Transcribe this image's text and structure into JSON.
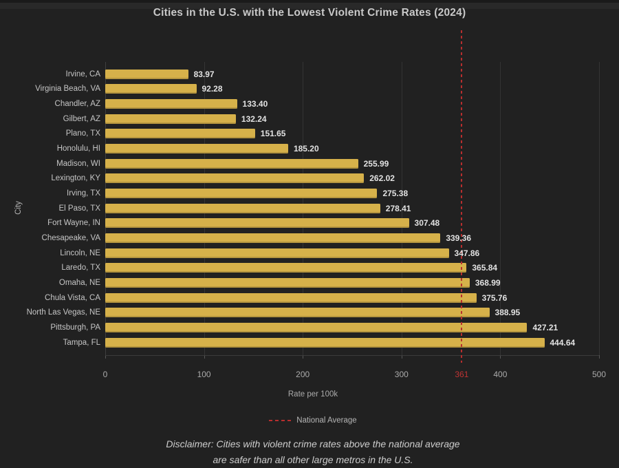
{
  "chart_data": {
    "type": "bar",
    "orientation": "horizontal",
    "title": "Cities in the U.S. with the Lowest Violent Crime Rates (2024)",
    "xlabel": "Rate per 100k",
    "ylabel": "City",
    "xlim": [
      0,
      500
    ],
    "xticks": [
      0,
      100,
      200,
      300,
      400,
      500
    ],
    "categories": [
      "Irvine, CA",
      "Virginia Beach, VA",
      "Chandler, AZ",
      "Gilbert, AZ",
      "Plano, TX",
      "Honolulu, HI",
      "Madison, WI",
      "Lexington, KY",
      "Irving, TX",
      "El Paso, TX",
      "Fort Wayne, IN",
      "Chesapeake, VA",
      "Lincoln, NE",
      "Laredo, TX",
      "Omaha, NE",
      "Chula Vista, CA",
      "North Las Vegas, NE",
      "Pittsburgh, PA",
      "Tampa, FL"
    ],
    "values": [
      83.97,
      92.28,
      133.4,
      132.24,
      151.65,
      185.2,
      255.99,
      262.02,
      275.38,
      278.41,
      307.48,
      339.36,
      347.86,
      365.84,
      368.99,
      375.76,
      388.95,
      427.21,
      444.64
    ],
    "national_average": {
      "value": 361,
      "tick_label": "361",
      "legend_label": "National Average"
    },
    "colors": {
      "bar": "#d6b14a",
      "national_average_line": "#b82e2e",
      "background": "#212121"
    },
    "disclaimer_line1": "Disclaimer: Cities with violent crime rates above the national average",
    "disclaimer_line2": "are safer than all other large metros in the U.S."
  }
}
